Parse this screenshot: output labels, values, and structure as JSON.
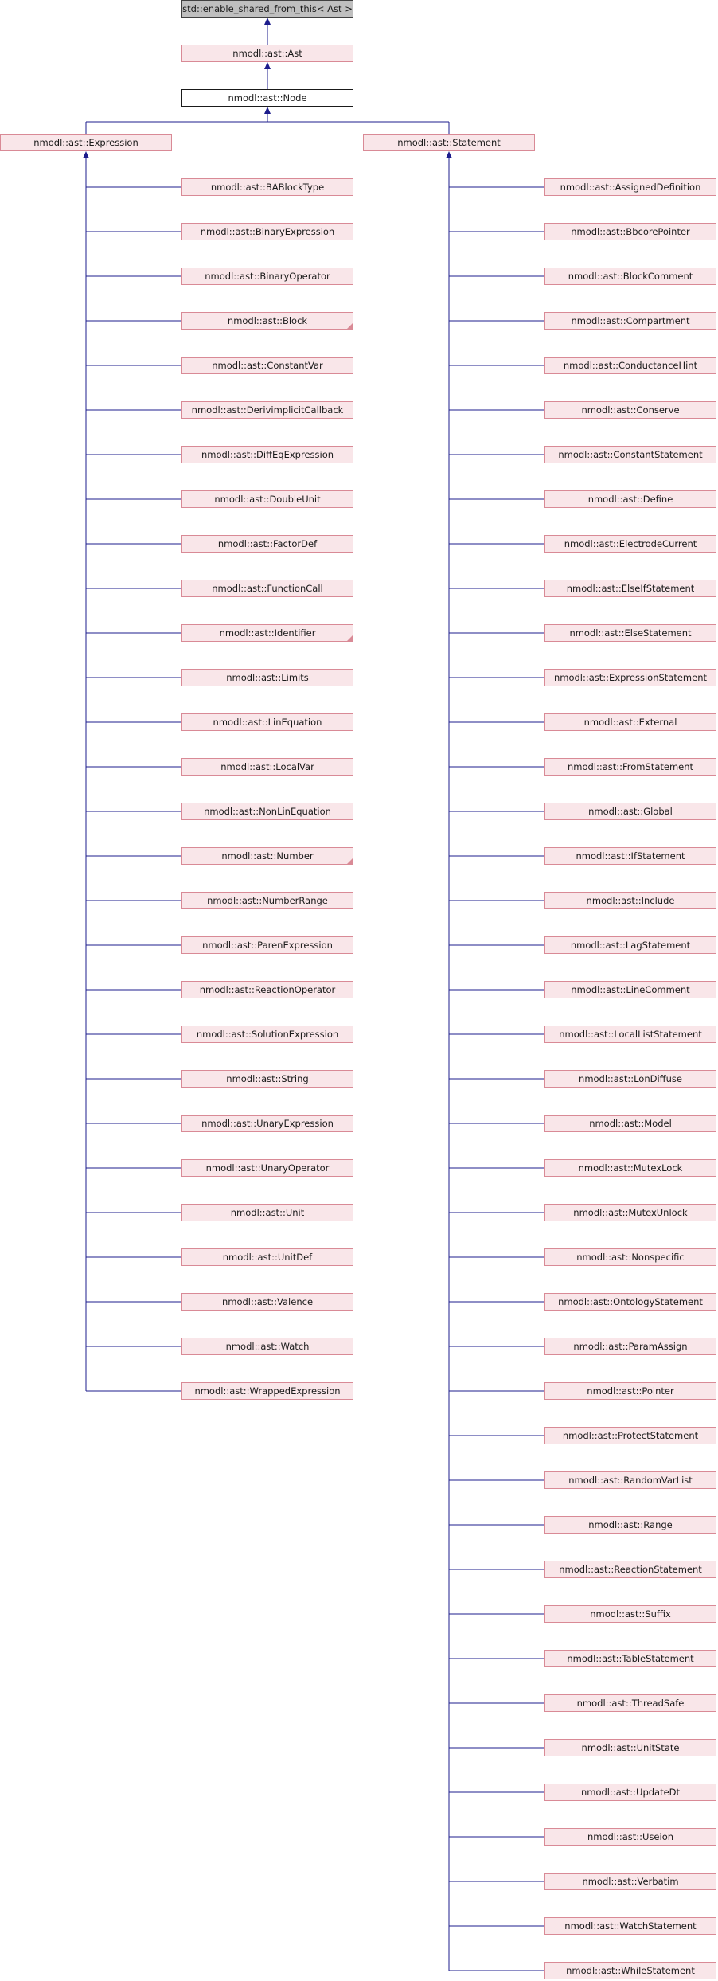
{
  "diagram": {
    "base": {
      "label": "std::enable_shared_from_this< Ast >"
    },
    "ast": {
      "label": "nmodl::ast::Ast"
    },
    "node": {
      "label": "nmodl::ast::Node"
    },
    "expression": {
      "label": "nmodl::ast::Expression",
      "children": [
        {
          "label": "nmodl::ast::BABlockType"
        },
        {
          "label": "nmodl::ast::BinaryExpression"
        },
        {
          "label": "nmodl::ast::BinaryOperator"
        },
        {
          "label": "nmodl::ast::Block",
          "more": true
        },
        {
          "label": "nmodl::ast::ConstantVar"
        },
        {
          "label": "nmodl::ast::DerivimplicitCallback"
        },
        {
          "label": "nmodl::ast::DiffEqExpression"
        },
        {
          "label": "nmodl::ast::DoubleUnit"
        },
        {
          "label": "nmodl::ast::FactorDef"
        },
        {
          "label": "nmodl::ast::FunctionCall"
        },
        {
          "label": "nmodl::ast::Identifier",
          "more": true
        },
        {
          "label": "nmodl::ast::Limits"
        },
        {
          "label": "nmodl::ast::LinEquation"
        },
        {
          "label": "nmodl::ast::LocalVar"
        },
        {
          "label": "nmodl::ast::NonLinEquation"
        },
        {
          "label": "nmodl::ast::Number",
          "more": true
        },
        {
          "label": "nmodl::ast::NumberRange"
        },
        {
          "label": "nmodl::ast::ParenExpression"
        },
        {
          "label": "nmodl::ast::ReactionOperator"
        },
        {
          "label": "nmodl::ast::SolutionExpression"
        },
        {
          "label": "nmodl::ast::String"
        },
        {
          "label": "nmodl::ast::UnaryExpression"
        },
        {
          "label": "nmodl::ast::UnaryOperator"
        },
        {
          "label": "nmodl::ast::Unit"
        },
        {
          "label": "nmodl::ast::UnitDef"
        },
        {
          "label": "nmodl::ast::Valence"
        },
        {
          "label": "nmodl::ast::Watch"
        },
        {
          "label": "nmodl::ast::WrappedExpression"
        }
      ]
    },
    "statement": {
      "label": "nmodl::ast::Statement",
      "children": [
        {
          "label": "nmodl::ast::AssignedDefinition"
        },
        {
          "label": "nmodl::ast::BbcorePointer"
        },
        {
          "label": "nmodl::ast::BlockComment"
        },
        {
          "label": "nmodl::ast::Compartment"
        },
        {
          "label": "nmodl::ast::ConductanceHint"
        },
        {
          "label": "nmodl::ast::Conserve"
        },
        {
          "label": "nmodl::ast::ConstantStatement"
        },
        {
          "label": "nmodl::ast::Define"
        },
        {
          "label": "nmodl::ast::ElectrodeCurrent"
        },
        {
          "label": "nmodl::ast::ElseIfStatement"
        },
        {
          "label": "nmodl::ast::ElseStatement"
        },
        {
          "label": "nmodl::ast::ExpressionStatement"
        },
        {
          "label": "nmodl::ast::External"
        },
        {
          "label": "nmodl::ast::FromStatement"
        },
        {
          "label": "nmodl::ast::Global"
        },
        {
          "label": "nmodl::ast::IfStatement"
        },
        {
          "label": "nmodl::ast::Include"
        },
        {
          "label": "nmodl::ast::LagStatement"
        },
        {
          "label": "nmodl::ast::LineComment"
        },
        {
          "label": "nmodl::ast::LocalListStatement"
        },
        {
          "label": "nmodl::ast::LonDiffuse"
        },
        {
          "label": "nmodl::ast::Model"
        },
        {
          "label": "nmodl::ast::MutexLock"
        },
        {
          "label": "nmodl::ast::MutexUnlock"
        },
        {
          "label": "nmodl::ast::Nonspecific"
        },
        {
          "label": "nmodl::ast::OntologyStatement"
        },
        {
          "label": "nmodl::ast::ParamAssign"
        },
        {
          "label": "nmodl::ast::Pointer"
        },
        {
          "label": "nmodl::ast::ProtectStatement"
        },
        {
          "label": "nmodl::ast::RandomVarList"
        },
        {
          "label": "nmodl::ast::Range"
        },
        {
          "label": "nmodl::ast::ReactionStatement"
        },
        {
          "label": "nmodl::ast::Suffix"
        },
        {
          "label": "nmodl::ast::TableStatement"
        },
        {
          "label": "nmodl::ast::ThreadSafe"
        },
        {
          "label": "nmodl::ast::UnitState"
        },
        {
          "label": "nmodl::ast::UpdateDt"
        },
        {
          "label": "nmodl::ast::Useion"
        },
        {
          "label": "nmodl::ast::Verbatim"
        },
        {
          "label": "nmodl::ast::WatchStatement"
        },
        {
          "label": "nmodl::ast::WhileStatement"
        }
      ]
    }
  },
  "colors": {
    "edge": "#1c1c8c",
    "node_fill": "#f9e6e9",
    "node_border": "#d98a96",
    "root_fill": "#bfbfbf",
    "current_fill": "#ffffff"
  }
}
